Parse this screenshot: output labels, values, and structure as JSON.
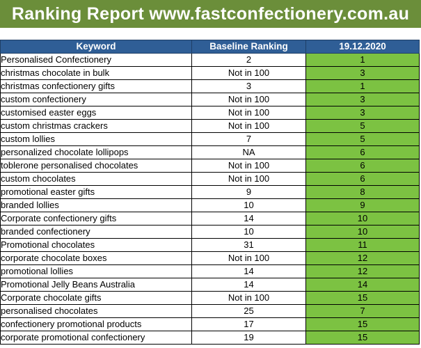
{
  "title": "Ranking Report www.fastconfectionery.com.au",
  "colors": {
    "banner": "#6b8e3a",
    "header": "#2f5e96",
    "rank_fill": "#7cc242"
  },
  "columns": [
    "Keyword",
    "Baseline Ranking",
    "19.12.2020"
  ],
  "rows": [
    {
      "keyword": "Personalised Confectionery",
      "baseline": "2",
      "rank": "1"
    },
    {
      "keyword": "christmas chocolate in bulk",
      "baseline": "Not in 100",
      "rank": "3"
    },
    {
      "keyword": "christmas confectionery gifts",
      "baseline": "3",
      "rank": "1"
    },
    {
      "keyword": "custom confectionery",
      "baseline": "Not in 100",
      "rank": "3"
    },
    {
      "keyword": "customised easter eggs",
      "baseline": "Not in 100",
      "rank": "3"
    },
    {
      "keyword": "custom christmas crackers",
      "baseline": "Not in 100",
      "rank": "5"
    },
    {
      "keyword": "custom lollies",
      "baseline": "7",
      "rank": "5"
    },
    {
      "keyword": "personalized chocolate lollipops",
      "baseline": "NA",
      "rank": "6"
    },
    {
      "keyword": "toblerone personalised chocolates",
      "baseline": "Not in 100",
      "rank": "6"
    },
    {
      "keyword": "custom chocolates",
      "baseline": "Not in 100",
      "rank": "6"
    },
    {
      "keyword": "promotional easter gifts",
      "baseline": "9",
      "rank": "8"
    },
    {
      "keyword": "branded lollies",
      "baseline": "10",
      "rank": "9"
    },
    {
      "keyword": "Corporate confectionery gifts",
      "baseline": "14",
      "rank": "10"
    },
    {
      "keyword": "branded confectionery",
      "baseline": "10",
      "rank": "10"
    },
    {
      "keyword": "Promotional chocolates",
      "baseline": "31",
      "rank": "11"
    },
    {
      "keyword": "corporate chocolate boxes",
      "baseline": "Not in 100",
      "rank": "12"
    },
    {
      "keyword": "promotional lollies",
      "baseline": "14",
      "rank": "12"
    },
    {
      "keyword": "Promotional Jelly Beans Australia",
      "baseline": "14",
      "rank": "14"
    },
    {
      "keyword": "Corporate chocolate gifts",
      "baseline": "Not in 100",
      "rank": "15"
    },
    {
      "keyword": "personalised chocolates",
      "baseline": "25",
      "rank": "7"
    },
    {
      "keyword": "confectionery promotional products",
      "baseline": "17",
      "rank": "15"
    },
    {
      "keyword": "corporate promotional confectionery",
      "baseline": "19",
      "rank": "15"
    }
  ]
}
